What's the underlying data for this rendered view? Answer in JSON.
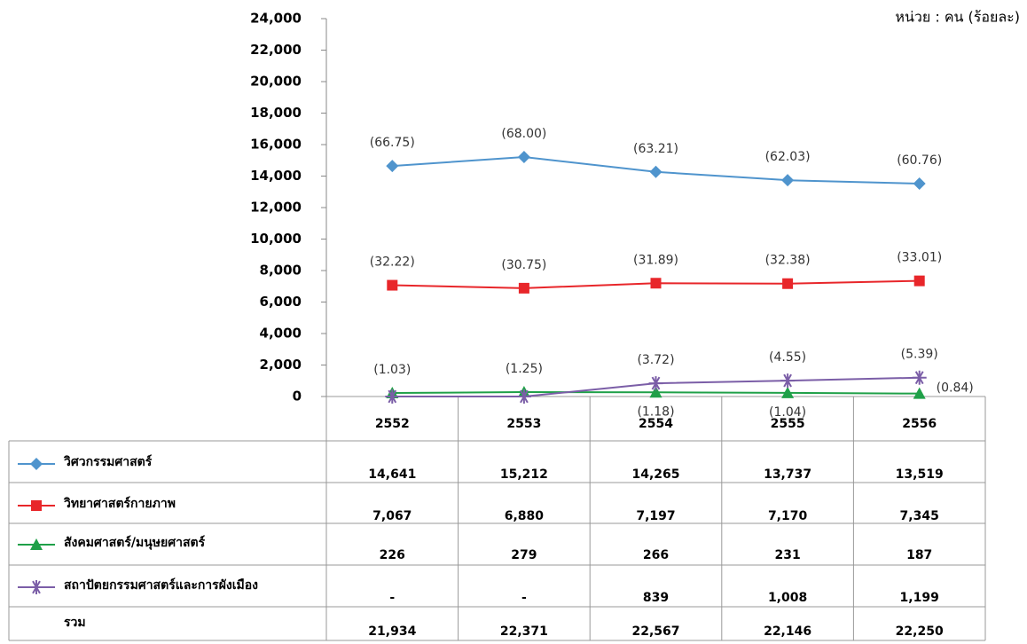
{
  "chart_data": {
    "type": "line",
    "unit_note": "หน่วย : คน (ร้อยละ)",
    "categories": [
      "2552",
      "2553",
      "2554",
      "2555",
      "2556"
    ],
    "ylim": [
      0,
      24000
    ],
    "yticks": [
      0,
      {
        "value": 2000,
        "label": "2,000"
      },
      {
        "value": 4000,
        "label": "4,000"
      },
      {
        "value": 6000,
        "label": "6,000"
      },
      {
        "value": 8000,
        "label": "8,000"
      },
      {
        "value": 10000,
        "label": "10,000"
      },
      {
        "value": 12000,
        "label": "12,000"
      },
      {
        "value": 14000,
        "label": "14,000"
      },
      {
        "value": 16000,
        "label": "16,000"
      },
      {
        "value": 18000,
        "label": "18,000"
      },
      {
        "value": 20000,
        "label": "20,000"
      },
      {
        "value": 22000,
        "label": "22,000"
      },
      {
        "value": 24000,
        "label": "24,000"
      }
    ],
    "series": [
      {
        "name": "วิศวกรรมศาสตร์",
        "color": "#4f94cd",
        "marker": "diamond",
        "values": [
          14641,
          15212,
          14265,
          13737,
          13519
        ],
        "value_labels": [
          "14,641",
          "15,212",
          "14,265",
          "13,737",
          "13,519"
        ],
        "shares": [
          "(66.75)",
          "(68.00)",
          "(63.21)",
          "(62.03)",
          "(60.76)"
        ]
      },
      {
        "name": "วิทยาศาสตร์กายภาพ",
        "color": "#e8262a",
        "marker": "square",
        "values": [
          7067,
          6880,
          7197,
          7170,
          7345
        ],
        "value_labels": [
          "7,067",
          "6,880",
          "7,197",
          "7,170",
          "7,345"
        ],
        "shares": [
          "(32.22)",
          "(30.75)",
          "(31.89)",
          "(32.38)",
          "(33.01)"
        ]
      },
      {
        "name": "สังคมศาสตร์/มนุษยศาสตร์",
        "color": "#1fa048",
        "marker": "triangle",
        "values": [
          226,
          279,
          266,
          231,
          187
        ],
        "value_labels": [
          "226",
          "279",
          "266",
          "231",
          "187"
        ],
        "shares": [
          "(1.03)",
          "(1.25)",
          "(1.18)",
          "(1.04)",
          "(0.84)"
        ]
      },
      {
        "name": "สถาปัตยกรรมศาสตร์และการผังเมือง",
        "color": "#7b5ea7",
        "marker": "star",
        "values": [
          0,
          0,
          839,
          1008,
          1199
        ],
        "value_labels": [
          "-",
          "-",
          "839",
          "1,008",
          "1,199"
        ],
        "shares": [
          null,
          null,
          "(3.72)",
          "(4.55)",
          "(5.39)"
        ]
      }
    ],
    "total": {
      "name": "รวม",
      "values": [
        21934,
        22371,
        22567,
        22146,
        22250
      ],
      "value_labels": [
        "21,934",
        "22,371",
        "22,567",
        "22,146",
        "22,250"
      ]
    }
  }
}
